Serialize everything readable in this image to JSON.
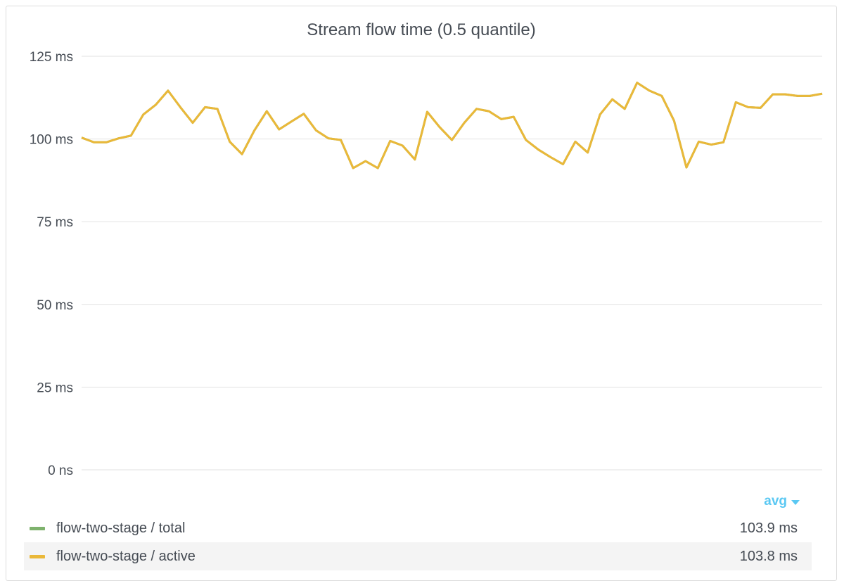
{
  "panel": {
    "title": "Stream flow time (0.5 quantile)"
  },
  "legend": {
    "stat_label": "avg",
    "series": [
      {
        "name": "flow-two-stage / total",
        "value": "103.9 ms",
        "color": "#7eb26d"
      },
      {
        "name": "flow-two-stage / active",
        "value": "103.8 ms",
        "color": "#eab839"
      }
    ]
  },
  "chart_data": {
    "type": "line",
    "title": "Stream flow time (0.5 quantile)",
    "ylim": [
      0,
      125
    ],
    "y_unit": "ms",
    "y_ticks": [
      "0 ns",
      "25 ms",
      "50 ms",
      "75 ms",
      "100 ms",
      "125 ms"
    ],
    "y_tick_values": [
      0,
      25,
      50,
      75,
      100,
      125
    ],
    "grid": true,
    "legend_placement": "bottom",
    "series": [
      {
        "name": "flow-two-stage / active",
        "color": "#eab839",
        "values": [
          100.4,
          99.0,
          99.0,
          100.2,
          101.0,
          107.4,
          110.3,
          114.6,
          109.6,
          104.9,
          109.6,
          109.1,
          99.2,
          95.4,
          102.6,
          108.4,
          102.9,
          105.3,
          107.6,
          102.6,
          100.2,
          99.7,
          91.2,
          93.3,
          91.2,
          99.4,
          98.0,
          93.8,
          108.2,
          103.6,
          99.7,
          104.9,
          109.1,
          108.4,
          106.0,
          106.7,
          99.7,
          96.8,
          94.5,
          92.4,
          99.2,
          95.9,
          107.4,
          112.0,
          109.1,
          117.0,
          114.6,
          113.0,
          105.5,
          91.4,
          99.2,
          98.3,
          99.0,
          111.1,
          109.6,
          109.4,
          113.5,
          113.5,
          113.0,
          113.0,
          113.7
        ]
      },
      {
        "name": "flow-two-stage / total",
        "color": "#7eb26d",
        "values": [
          100.4,
          99.0,
          99.0,
          100.2,
          101.0,
          107.4,
          110.3,
          114.6,
          109.6,
          104.9,
          109.6,
          109.1,
          99.2,
          95.4,
          102.6,
          108.4,
          102.9,
          105.3,
          107.6,
          102.6,
          100.2,
          99.7,
          91.2,
          93.3,
          91.2,
          99.4,
          98.0,
          93.8,
          108.2,
          103.6,
          99.7,
          104.9,
          109.1,
          108.4,
          106.0,
          106.7,
          99.7,
          96.8,
          94.5,
          92.4,
          99.2,
          95.9,
          107.4,
          112.0,
          109.1,
          117.0,
          114.6,
          113.0,
          105.5,
          91.4,
          99.2,
          98.3,
          99.0,
          111.1,
          109.6,
          109.4,
          113.5,
          113.5,
          113.0,
          113.0,
          113.7
        ]
      }
    ]
  }
}
